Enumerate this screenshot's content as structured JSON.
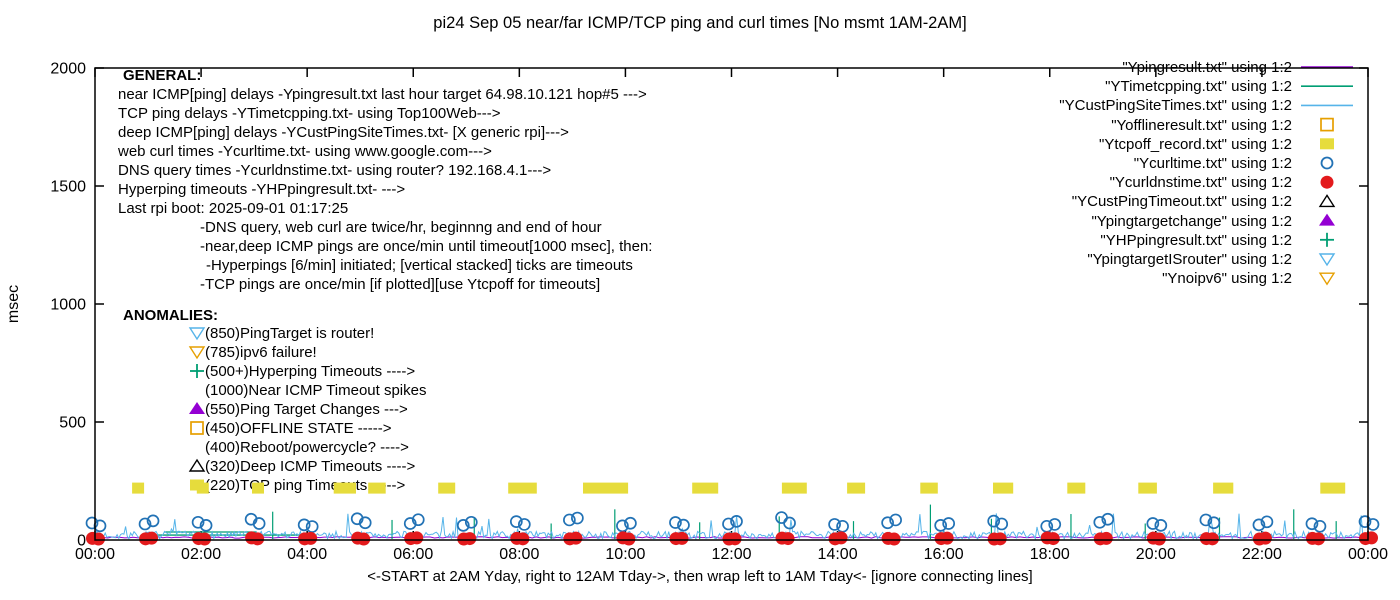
{
  "title": "pi24 Sep 05  near/far ICMP/TCP ping and curl times [No msmt 1AM-2AM]",
  "axes": {
    "ylabel": "msec",
    "xlabel": "<-START at 2AM Yday, right to 12AM Tday->, then wrap left to 1AM Tday<- [ignore connecting lines]",
    "yticks": [
      "0",
      "500",
      "1000",
      "1500",
      "2000"
    ],
    "xticks": [
      "00:00",
      "02:00",
      "04:00",
      "06:00",
      "08:00",
      "10:00",
      "12:00",
      "14:00",
      "16:00",
      "18:00",
      "20:00",
      "22:00",
      "00:00"
    ]
  },
  "general": {
    "heading": "GENERAL:",
    "lines": [
      "near ICMP[ping] delays -Ypingresult.txt last hour target 64.98.10.121 hop#5 --->",
      "TCP ping delays -YTimetcpping.txt- using Top100Web--->",
      "deep ICMP[ping] delays -YCustPingSiteTimes.txt- [X generic rpi]--->",
      "web curl times -Ycurltime.txt- using www.google.com--->",
      "DNS query times -Ycurldnstime.txt- using router? 192.168.4.1--->",
      "Hyperping timeouts -YHPpingresult.txt- --->",
      "Last rpi boot: 2025-09-01 01:17:25"
    ],
    "notes": [
      "-DNS query, web curl are twice/hr, beginnng and end of hour",
      "-near,deep ICMP pings are once/min until timeout[1000 msec], then:",
      "-Hyperpings [6/min] initiated; [vertical stacked] ticks are timeouts",
      "-TCP pings are once/min [if plotted][use Ytcpoff for timeouts]"
    ]
  },
  "anomalies": {
    "heading": "ANOMALIES:",
    "items": [
      {
        "marker": "open-triangle-down",
        "color": "#56b4e9",
        "text": "(850)PingTarget is router!"
      },
      {
        "marker": "open-triangle-down",
        "color": "#e69f00",
        "text": "(785)ipv6 failure!"
      },
      {
        "marker": "plus",
        "color": "#009e73",
        "text": "(500+)Hyperping Timeouts ---->"
      },
      {
        "marker": "none",
        "color": "",
        "text": "(1000)Near ICMP Timeout spikes"
      },
      {
        "marker": "filled-triangle-up",
        "color": "#9400d3",
        "text": "(550)Ping Target Changes --->"
      },
      {
        "marker": "open-square",
        "color": "#e69f00",
        "text": "(450)OFFLINE STATE ----->"
      },
      {
        "marker": "none",
        "color": "",
        "text": "(400)Reboot/powercycle? ---->"
      },
      {
        "marker": "open-triangle-up",
        "color": "#000000",
        "text": "(320)Deep ICMP Timeouts ---->"
      },
      {
        "marker": "filled-square",
        "color": "#e6dc3c",
        "text": "(220)TCP ping Timeouts ----->"
      }
    ]
  },
  "legend": [
    {
      "label": "\"Ypingresult.txt\" using 1:2",
      "marker": "line",
      "color": "#9400d3"
    },
    {
      "label": "\"YTimetcpping.txt\" using 1:2",
      "marker": "line",
      "color": "#009e73"
    },
    {
      "label": "\"YCustPingSiteTimes.txt\" using 1:2",
      "marker": "line",
      "color": "#56b4e9"
    },
    {
      "label": "\"Yofflineresult.txt\" using 1:2",
      "marker": "open-square",
      "color": "#e69f00"
    },
    {
      "label": "\"Ytcpoff_record.txt\" using 1:2",
      "marker": "filled-square",
      "color": "#e6dc3c"
    },
    {
      "label": "\"Ycurltime.txt\" using 1:2",
      "marker": "open-circle",
      "color": "#2272b5"
    },
    {
      "label": "\"Ycurldnstime.txt\" using 1:2",
      "marker": "filled-circle",
      "color": "#e31a1c"
    },
    {
      "label": "\"YCustPingTimeout.txt\" using 1:2",
      "marker": "open-triangle-up",
      "color": "#000000"
    },
    {
      "label": "\"Ypingtargetchange\" using 1:2",
      "marker": "filled-triangle-up",
      "color": "#9400d3"
    },
    {
      "label": "\"YHPpingresult.txt\" using 1:2",
      "marker": "plus",
      "color": "#009e73"
    },
    {
      "label": "\"YpingtargetISrouter\" using 1:2",
      "marker": "open-triangle-down",
      "color": "#56b4e9"
    },
    {
      "label": "\"Ynoipv6\" using 1:2",
      "marker": "open-triangle-down",
      "color": "#e69f00"
    }
  ],
  "chart_data": {
    "type": "line",
    "title": "pi24 Sep 05  near/far ICMP/TCP ping and curl times [No msmt 1AM-2AM]",
    "xlabel": "<-START at 2AM Yday, right to 12AM Tday->, then wrap left to 1AM Tday<- [ignore connecting lines]",
    "ylabel": "msec",
    "xlim_hours": [
      0,
      24
    ],
    "ylim": [
      0,
      2000
    ],
    "grid": false,
    "legend_position": "top-right",
    "series": [
      {
        "name": "Ypingresult.txt",
        "kind": "flat-noisy-line",
        "color": "#9400d3",
        "baseline_msec": 8,
        "noise_msec": 6,
        "span_hours": [
          0,
          24
        ]
      },
      {
        "name": "YTimetcpping.txt",
        "kind": "line-segments",
        "color": "#009e73",
        "segments": [
          {
            "from_h": 1.0,
            "to_h": 4.15,
            "msec": 21
          },
          {
            "from_h": 1.3,
            "to_h": 3.05,
            "msec": 34
          }
        ],
        "spikes": [
          {
            "h": 3.35,
            "msec": 120
          },
          {
            "h": 5.6,
            "msec": 85
          },
          {
            "h": 7.15,
            "msec": 95
          },
          {
            "h": 8.6,
            "msec": 70
          },
          {
            "h": 9.8,
            "msec": 130
          },
          {
            "h": 11.4,
            "msec": 75
          },
          {
            "h": 12.9,
            "msec": 100
          },
          {
            "h": 14.3,
            "msec": 80
          },
          {
            "h": 15.75,
            "msec": 150
          },
          {
            "h": 16.9,
            "msec": 90
          },
          {
            "h": 18.4,
            "msec": 110
          },
          {
            "h": 19.8,
            "msec": 70
          },
          {
            "h": 21.2,
            "msec": 95
          },
          {
            "h": 22.6,
            "msec": 130
          },
          {
            "h": 23.4,
            "msec": 80
          }
        ]
      },
      {
        "name": "YCustPingSiteTimes.txt",
        "kind": "noisy-line",
        "color": "#56b4e9",
        "baseline_msec": 5,
        "noise_msec": 32,
        "spike_msec_max": 115,
        "spike_probability": 0.045,
        "span_hours": [
          0,
          24
        ]
      },
      {
        "name": "Yofflineresult.txt",
        "kind": "scatter",
        "marker": "open-square",
        "color": "#e69f00",
        "points": []
      },
      {
        "name": "Ytcpoff_record.txt",
        "kind": "timeout-blocks",
        "marker": "filled-square",
        "color": "#e6dc3c",
        "value_msec": 220,
        "blocks_hours": [
          [
            0.7,
            0.86
          ],
          [
            1.92,
            2.11
          ],
          [
            2.96,
            3.17
          ],
          [
            4.5,
            4.92
          ],
          [
            5.15,
            5.48
          ],
          [
            6.47,
            6.79
          ],
          [
            7.79,
            8.33
          ],
          [
            9.2,
            10.05
          ],
          [
            11.26,
            11.75
          ],
          [
            12.95,
            13.42
          ],
          [
            14.18,
            14.52
          ],
          [
            15.56,
            15.89
          ],
          [
            16.93,
            17.31
          ],
          [
            18.33,
            18.67
          ],
          [
            19.67,
            20.02
          ],
          [
            21.08,
            21.46
          ],
          [
            23.1,
            23.57
          ]
        ]
      },
      {
        "name": "Ycurltime.txt",
        "kind": "hourly-pair-scatter",
        "marker": "open-circle",
        "color": "#2272b5",
        "pairs_msec": [
          [
            72,
            60
          ],
          [
            68,
            81
          ],
          [
            75,
            62
          ],
          [
            88,
            70
          ],
          [
            64,
            57
          ],
          [
            90,
            73
          ],
          [
            70,
            86
          ],
          [
            62,
            75
          ],
          [
            78,
            66
          ],
          [
            85,
            93
          ],
          [
            60,
            71
          ],
          [
            74,
            63
          ],
          [
            68,
            79
          ],
          [
            95,
            72
          ],
          [
            66,
            58
          ],
          [
            73,
            85
          ],
          [
            62,
            70
          ],
          [
            80,
            68
          ],
          [
            58,
            66
          ],
          [
            75,
            88
          ],
          [
            70,
            62
          ],
          [
            85,
            73
          ],
          [
            64,
            77
          ],
          [
            69,
            58
          ],
          [
            78,
            66
          ]
        ]
      },
      {
        "name": "Ycurldnstime.txt",
        "kind": "hourly-pair-scatter",
        "marker": "filled-circle",
        "color": "#e31a1c",
        "pairs_msec": [
          [
            7,
            4
          ],
          [
            5,
            8
          ],
          [
            6,
            4
          ],
          [
            9,
            5
          ],
          [
            5,
            7
          ],
          [
            8,
            4
          ],
          [
            6,
            9
          ],
          [
            4,
            6
          ],
          [
            7,
            5
          ],
          [
            5,
            8
          ],
          [
            9,
            4
          ],
          [
            6,
            7
          ],
          [
            4,
            5
          ],
          [
            8,
            6
          ],
          [
            5,
            9
          ],
          [
            7,
            4
          ],
          [
            6,
            8
          ],
          [
            4,
            5
          ],
          [
            9,
            6
          ],
          [
            5,
            7
          ],
          [
            8,
            4
          ],
          [
            6,
            5
          ],
          [
            4,
            8
          ],
          [
            7,
            5
          ],
          [
            6,
            9
          ]
        ]
      },
      {
        "name": "YCustPingTimeout.txt",
        "kind": "scatter",
        "marker": "open-triangle-up",
        "color": "#000000",
        "points": []
      },
      {
        "name": "Ypingtargetchange",
        "kind": "scatter",
        "marker": "filled-triangle-up",
        "color": "#9400d3",
        "points": []
      },
      {
        "name": "YHPpingresult.txt",
        "kind": "scatter",
        "marker": "plus",
        "color": "#009e73",
        "points": []
      },
      {
        "name": "YpingtargetISrouter",
        "kind": "scatter",
        "marker": "open-triangle-down",
        "color": "#56b4e9",
        "points": []
      },
      {
        "name": "Ynoipv6",
        "kind": "scatter",
        "marker": "open-triangle-down",
        "color": "#e69f00",
        "points": []
      }
    ]
  }
}
